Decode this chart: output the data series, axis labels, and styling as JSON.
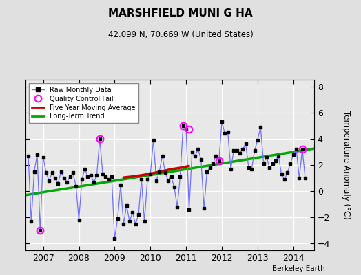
{
  "title": "MARSHFIELD MUNI G HA",
  "subtitle": "42.099 N, 70.669 W (United States)",
  "ylabel": "Temperature Anomaly (°C)",
  "credit": "Berkeley Earth",
  "xlim": [
    2006.5,
    2014.58
  ],
  "ylim": [
    -4.5,
    8.5
  ],
  "yticks": [
    -4,
    -2,
    0,
    2,
    4,
    6,
    8
  ],
  "xticks": [
    2007,
    2008,
    2009,
    2010,
    2011,
    2012,
    2013,
    2014
  ],
  "bg_color": "#e0e0e0",
  "plot_bg": "#e8e8e8",
  "raw_data": {
    "x": [
      2006.583,
      2006.667,
      2006.75,
      2006.833,
      2006.917,
      2007.0,
      2007.083,
      2007.167,
      2007.25,
      2007.333,
      2007.417,
      2007.5,
      2007.583,
      2007.667,
      2007.75,
      2007.833,
      2007.917,
      2008.0,
      2008.083,
      2008.167,
      2008.25,
      2008.333,
      2008.417,
      2008.5,
      2008.583,
      2008.667,
      2008.75,
      2008.833,
      2008.917,
      2009.0,
      2009.083,
      2009.167,
      2009.25,
      2009.333,
      2009.417,
      2009.5,
      2009.583,
      2009.667,
      2009.75,
      2009.833,
      2009.917,
      2010.0,
      2010.083,
      2010.167,
      2010.25,
      2010.333,
      2010.417,
      2010.5,
      2010.583,
      2010.667,
      2010.75,
      2010.833,
      2010.917,
      2011.0,
      2011.083,
      2011.167,
      2011.25,
      2011.333,
      2011.417,
      2011.5,
      2011.583,
      2011.667,
      2011.75,
      2011.833,
      2011.917,
      2012.0,
      2012.083,
      2012.167,
      2012.25,
      2012.333,
      2012.417,
      2012.5,
      2012.583,
      2012.667,
      2012.75,
      2012.833,
      2012.917,
      2013.0,
      2013.083,
      2013.167,
      2013.25,
      2013.333,
      2013.417,
      2013.5,
      2013.583,
      2013.667,
      2013.75,
      2013.833,
      2013.917,
      2014.0,
      2014.083,
      2014.167,
      2014.25,
      2014.333
    ],
    "y": [
      2.7,
      -2.3,
      1.5,
      2.8,
      -3.0,
      2.6,
      1.4,
      0.8,
      1.4,
      1.0,
      0.6,
      1.5,
      1.0,
      0.7,
      1.1,
      1.4,
      0.4,
      -2.2,
      0.9,
      1.7,
      1.1,
      1.2,
      0.7,
      1.2,
      4.0,
      1.3,
      1.1,
      0.9,
      1.1,
      -3.6,
      -2.1,
      0.5,
      -2.5,
      -1.1,
      -2.3,
      -1.6,
      -2.5,
      -1.8,
      0.9,
      -2.3,
      0.9,
      1.3,
      3.9,
      0.8,
      1.5,
      2.7,
      1.4,
      0.8,
      1.1,
      0.3,
      -1.2,
      1.1,
      5.0,
      4.7,
      -1.4,
      3.0,
      2.7,
      3.2,
      2.4,
      -1.3,
      1.5,
      1.8,
      2.1,
      2.7,
      2.3,
      5.3,
      4.4,
      4.5,
      1.7,
      3.1,
      3.1,
      2.9,
      3.2,
      3.6,
      1.8,
      1.7,
      3.1,
      3.9,
      4.9,
      2.1,
      2.6,
      1.8,
      2.1,
      2.3,
      2.7,
      1.3,
      0.9,
      1.4,
      2.1,
      2.8,
      3.2,
      1.0,
      3.2,
      1.0
    ]
  },
  "qc_fail": {
    "x": [
      2006.917,
      2008.583,
      2010.917,
      2011.083,
      2011.917,
      2014.25
    ],
    "y": [
      -3.0,
      4.0,
      5.0,
      4.7,
      2.3,
      3.2
    ]
  },
  "moving_avg": {
    "x": [
      2009.25,
      2009.42,
      2009.58,
      2009.75,
      2009.92,
      2010.08,
      2010.25,
      2010.42,
      2010.58,
      2010.75,
      2010.92,
      2011.0,
      2011.08
    ],
    "y": [
      1.05,
      1.1,
      1.15,
      1.22,
      1.3,
      1.38,
      1.48,
      1.58,
      1.68,
      1.75,
      1.82,
      1.88,
      1.92
    ]
  },
  "trend": {
    "x": [
      2006.5,
      2014.58
    ],
    "y": [
      -0.3,
      3.25
    ]
  },
  "raw_line_color": "#7070ff",
  "raw_marker_color": "#000000",
  "qc_color": "#ff00ff",
  "moving_avg_color": "#cc0000",
  "trend_color": "#00aa00"
}
